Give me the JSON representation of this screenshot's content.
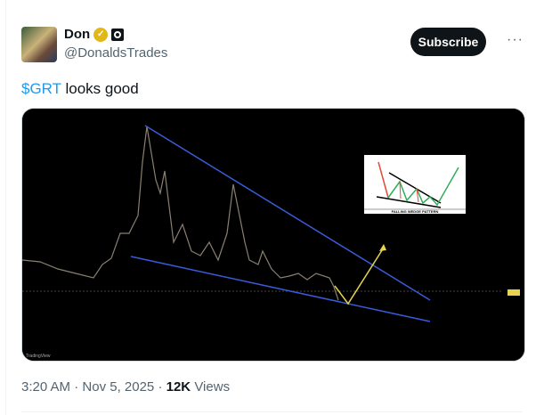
{
  "author": {
    "name": "Don",
    "handle": "@DonaldsTrades",
    "verified": true
  },
  "actions": {
    "subscribe_label": "Subscribe",
    "more_icon": "more-horizontal-icon"
  },
  "tweet": {
    "ticker": "$GRT",
    "text": " looks good"
  },
  "media": {
    "inset_caption": "FALLING WEDGE PATTERN",
    "watermark": "TradingView",
    "colors": {
      "trendlines": "#3b5bdb",
      "projection": "#e8d44d",
      "inset_up": "#2fae5b",
      "inset_down": "#e04b3a"
    }
  },
  "meta": {
    "time": "3:20 AM",
    "date": "Nov 5, 2025",
    "views": "12K",
    "views_label": "Views"
  }
}
